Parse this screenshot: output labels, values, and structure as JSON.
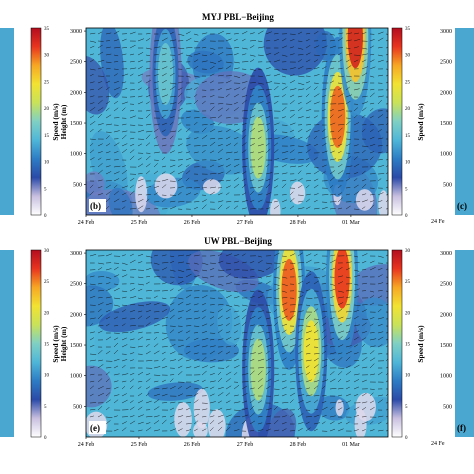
{
  "colormap": [
    "#ffffff",
    "#c9c0e0",
    "#2b4aa8",
    "#2d7cc4",
    "#4fb6d8",
    "#7fd0c4",
    "#c8e25a",
    "#f2e232",
    "#f7a724",
    "#e8341f",
    "#b30d1f"
  ],
  "arrow_color": "#101010",
  "chart_data": [
    {
      "type": "heatmap",
      "panel_label": "(b)",
      "title": "MYJ PBL−Beijing",
      "ylabel": "Height (m)",
      "colorbar_label": "Speed (m/s)",
      "x_ticks": [
        "24 Feb",
        "25 Feb",
        "26 Feb",
        "27 Feb",
        "28 Feb",
        "01 Mar"
      ],
      "y_ticks": [
        500,
        1000,
        1500,
        2000,
        2500,
        3000
      ],
      "colorbar_ticks": [
        0,
        5,
        10,
        15,
        20,
        25,
        30,
        35
      ],
      "zlim": [
        0,
        35
      ],
      "overlay": "wind vectors",
      "hotspots": [
        {
          "time": "28 Feb 18:00",
          "height": 1600,
          "speed": 30
        },
        {
          "time": "01 Mar 02:00",
          "height": 2900,
          "speed": 33
        },
        {
          "time": "27 Feb 06:00",
          "height": 1100,
          "speed": 20
        },
        {
          "time": "25 Feb 12:00",
          "height": 2300,
          "speed": 16
        }
      ]
    },
    {
      "type": "heatmap",
      "panel_label": "(e)",
      "title": "UW PBL−Beijing",
      "ylabel": "Height (m)",
      "colorbar_label": "Speed (m/s)",
      "x_ticks": [
        "24 Feb",
        "25 Feb",
        "26 Feb",
        "27 Feb",
        "28 Feb",
        "01 Mar"
      ],
      "y_ticks": [
        500,
        1000,
        1500,
        2000,
        2500,
        3000
      ],
      "colorbar_ticks": [
        0,
        5,
        10,
        15,
        20,
        25,
        30
      ],
      "zlim": [
        0,
        30
      ],
      "overlay": "wind vectors",
      "hotspots": [
        {
          "time": "27 Feb 20:00",
          "height": 2400,
          "speed": 26
        },
        {
          "time": "28 Feb 20:00",
          "height": 2600,
          "speed": 27
        },
        {
          "time": "28 Feb 06:00",
          "height": 1400,
          "speed": 21
        },
        {
          "time": "27 Feb 06:00",
          "height": 1100,
          "speed": 17
        }
      ]
    }
  ],
  "left_edge_panels": [
    {
      "colorbar_ticks": [
        0,
        5,
        10,
        15,
        20,
        25,
        30,
        35
      ],
      "colorbar_label": "Speed (m/s)"
    },
    {
      "colorbar_ticks": [
        0,
        5,
        10,
        15,
        20,
        25,
        30
      ],
      "colorbar_label": "Speed (m/s)"
    }
  ],
  "right_edge_panels": [
    {
      "panel_label": "(c)",
      "x_ticks": [
        "24 Fe"
      ],
      "y_ticks": [
        500,
        1000,
        1500,
        2000,
        2500,
        3000
      ]
    },
    {
      "panel_label": "(f)",
      "x_ticks": [
        "24 Fe"
      ],
      "y_ticks": [
        500,
        1000,
        1500,
        2000,
        2500,
        3000
      ]
    }
  ]
}
